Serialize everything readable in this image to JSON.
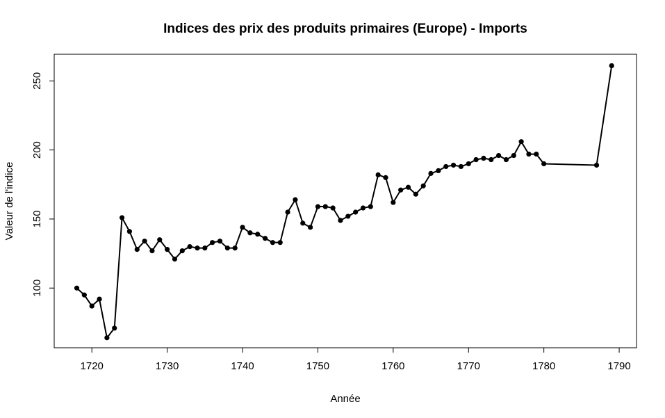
{
  "chart_data": {
    "type": "line",
    "title": "Indices des prix des produits primaires (Europe) - Imports",
    "xlabel": "Année",
    "ylabel": "Valeur de l'indice",
    "xlim": [
      1715.0,
      1792.3
    ],
    "ylim": [
      56.8,
      269.3
    ],
    "xticks": [
      1720,
      1730,
      1740,
      1750,
      1760,
      1770,
      1780,
      1790
    ],
    "yticks": [
      100,
      150,
      200,
      250
    ],
    "grid": false,
    "legend": "none",
    "line_color": "#000000",
    "x": [
      1718,
      1719,
      1720,
      1721,
      1722,
      1723,
      1724,
      1725,
      1726,
      1727,
      1728,
      1729,
      1730,
      1731,
      1732,
      1733,
      1734,
      1735,
      1736,
      1737,
      1738,
      1739,
      1740,
      1741,
      1742,
      1743,
      1744,
      1745,
      1746,
      1747,
      1748,
      1749,
      1750,
      1751,
      1752,
      1753,
      1754,
      1755,
      1756,
      1757,
      1758,
      1759,
      1760,
      1761,
      1762,
      1763,
      1764,
      1765,
      1766,
      1767,
      1768,
      1769,
      1770,
      1771,
      1772,
      1773,
      1774,
      1775,
      1776,
      1777,
      1778,
      1779,
      1780,
      1787,
      1789
    ],
    "y": [
      100,
      95,
      87,
      92,
      64,
      71,
      151,
      141,
      128,
      134,
      127,
      135,
      128,
      121,
      127,
      130,
      129,
      129,
      133,
      134,
      129,
      129,
      144,
      140,
      139,
      136,
      133,
      133,
      155,
      164,
      147,
      144,
      159,
      159,
      158,
      149,
      152,
      155,
      158,
      159,
      182,
      180,
      162,
      171,
      173,
      168,
      174,
      183,
      185,
      188,
      189,
      188,
      190,
      193,
      194,
      193,
      196,
      193,
      196,
      206,
      197,
      197,
      190,
      189,
      261
    ]
  }
}
